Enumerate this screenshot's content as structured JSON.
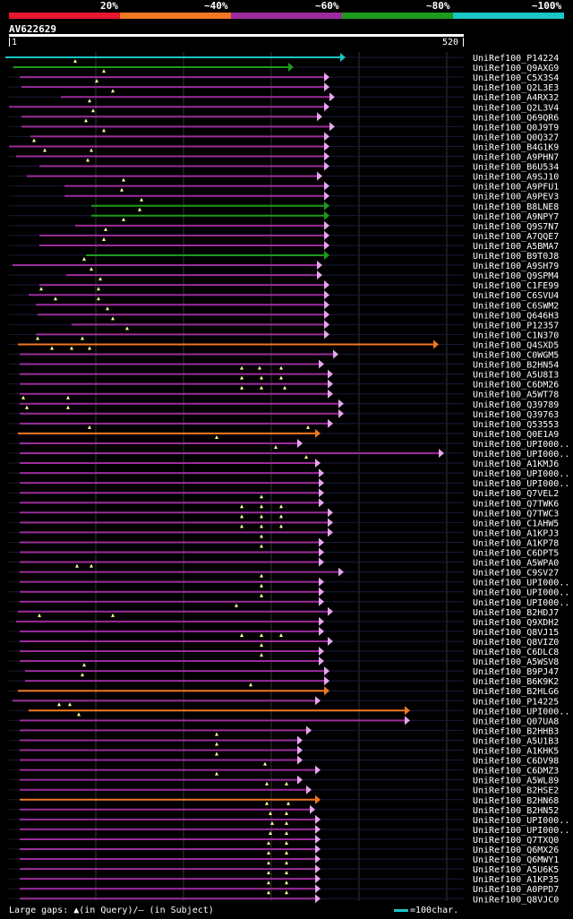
{
  "legend": [
    {
      "label": "20%",
      "color": "#e8162f"
    },
    {
      "label": "~40%",
      "color": "#f07820"
    },
    {
      "label": "~60%",
      "color": "#9c2c9c"
    },
    {
      "label": "~80%",
      "color": "#1d9a1d"
    },
    {
      "label": "~100%",
      "color": "#19c5c5"
    }
  ],
  "query": {
    "name": "AV622629",
    "start": "1",
    "end": "520"
  },
  "footer": {
    "gaps_text": "Large gaps: ▲(in Query)/– (in Subject)",
    "scale_text": "=100char."
  },
  "hits": [
    {
      "name": "UniRef100_P14224",
      "s": 6,
      "e": 380,
      "c": "cyan"
    },
    {
      "name": "UniRef100_Q9AXG9",
      "s": 15,
      "e": 322,
      "c": "green",
      "m": [
        84
      ]
    },
    {
      "name": "UniRef100_C5X3S4",
      "s": 22,
      "e": 362,
      "c": "purple",
      "m": [
        116
      ]
    },
    {
      "name": "UniRef100_Q2L3E3",
      "s": 24,
      "e": 362,
      "c": "purple",
      "m": [
        108
      ]
    },
    {
      "name": "UniRef100_A4RX32",
      "s": 68,
      "e": 368,
      "c": "purple",
      "m": [
        126
      ]
    },
    {
      "name": "UniRef100_Q2L3V4",
      "s": 10,
      "e": 362,
      "c": "purple",
      "m": [
        100
      ]
    },
    {
      "name": "UniRef100_Q69QR6",
      "s": 24,
      "e": 354,
      "c": "purple",
      "m": [
        104
      ]
    },
    {
      "name": "UniRef100_Q0J9T9",
      "s": 24,
      "e": 368,
      "c": "purple",
      "m": [
        96
      ]
    },
    {
      "name": "UniRef100_Q0Q327",
      "s": 34,
      "e": 362,
      "c": "purple",
      "m": [
        116
      ]
    },
    {
      "name": "UniRef100_B4G1K9",
      "s": 10,
      "e": 362,
      "c": "purple",
      "m": [
        38
      ]
    },
    {
      "name": "UniRef100_A9PHN7",
      "s": 18,
      "e": 362,
      "c": "purple",
      "m": [
        50,
        102
      ]
    },
    {
      "name": "UniRef100_B6U534",
      "s": 44,
      "e": 362,
      "c": "purple",
      "m": [
        98
      ]
    },
    {
      "name": "UniRef100_A9SJ10",
      "s": 30,
      "e": 354,
      "c": "purple"
    },
    {
      "name": "UniRef100_A9PFU1",
      "s": 72,
      "e": 362,
      "c": "purple",
      "m": [
        138
      ]
    },
    {
      "name": "UniRef100_A9PEV3",
      "s": 72,
      "e": 362,
      "c": "purple",
      "m": [
        136
      ]
    },
    {
      "name": "UniRef100_B8LNE8",
      "s": 102,
      "e": 362,
      "c": "green",
      "m": [
        158
      ]
    },
    {
      "name": "UniRef100_A9NPY7",
      "s": 102,
      "e": 362,
      "c": "green",
      "m": [
        156
      ]
    },
    {
      "name": "UniRef100_Q9S7N7",
      "s": 84,
      "e": 362,
      "c": "purple",
      "m": [
        138
      ]
    },
    {
      "name": "UniRef100_A7QQE7",
      "s": 44,
      "e": 362,
      "c": "purple",
      "m": [
        118
      ]
    },
    {
      "name": "UniRef100_A5BMA7",
      "s": 44,
      "e": 362,
      "c": "purple",
      "m": [
        116
      ]
    },
    {
      "name": "UniRef100_B9T0J8",
      "s": 96,
      "e": 362,
      "c": "green"
    },
    {
      "name": "UniRef100_A9SH79",
      "s": 14,
      "e": 354,
      "c": "purple",
      "m": [
        94
      ]
    },
    {
      "name": "UniRef100_Q9SPM4",
      "s": 74,
      "e": 354,
      "c": "purple",
      "m": [
        102
      ]
    },
    {
      "name": "UniRef100_C1FE99",
      "s": 44,
      "e": 362,
      "c": "purple",
      "m": [
        112
      ]
    },
    {
      "name": "UniRef100_C6SVU4",
      "s": 32,
      "e": 362,
      "c": "purple",
      "m": [
        46,
        110
      ]
    },
    {
      "name": "UniRef100_C6SWM2",
      "s": 40,
      "e": 362,
      "c": "purple",
      "m": [
        62,
        110
      ]
    },
    {
      "name": "UniRef100_Q646H3",
      "s": 42,
      "e": 362,
      "c": "purple",
      "m": [
        120
      ]
    },
    {
      "name": "UniRef100_P12357",
      "s": 80,
      "e": 362,
      "c": "purple",
      "m": [
        126
      ]
    },
    {
      "name": "UniRef100_C1N370",
      "s": 40,
      "e": 362,
      "c": "purple",
      "m": [
        142
      ]
    },
    {
      "name": "UniRef100_Q4SXD5",
      "s": 20,
      "e": 484,
      "c": "orange",
      "m": [
        42,
        92
      ]
    },
    {
      "name": "UniRef100_C0WGM5",
      "s": 22,
      "e": 372,
      "c": "purple",
      "m": [
        58,
        80,
        100
      ]
    },
    {
      "name": "UniRef100_B2HN54",
      "s": 22,
      "e": 356,
      "c": "purple"
    },
    {
      "name": "UniRef100_A5U8I3",
      "s": 22,
      "e": 366,
      "c": "purple",
      "m": [
        270,
        290,
        314
      ]
    },
    {
      "name": "UniRef100_C6DM26",
      "s": 22,
      "e": 366,
      "c": "purple",
      "m": [
        270,
        292,
        314
      ]
    },
    {
      "name": "UniRef100_A5WT78",
      "s": 22,
      "e": 366,
      "c": "purple",
      "m": [
        270,
        292,
        318
      ]
    },
    {
      "name": "UniRef100_Q39789",
      "s": 22,
      "e": 378,
      "c": "purple",
      "m": [
        26,
        76
      ]
    },
    {
      "name": "UniRef100_Q39763",
      "s": 22,
      "e": 378,
      "c": "purple",
      "m": [
        30,
        76
      ]
    },
    {
      "name": "UniRef100_Q53553",
      "s": 22,
      "e": 366,
      "c": "purple"
    },
    {
      "name": "UniRef100_Q0E1A9",
      "s": 20,
      "e": 352,
      "c": "orange",
      "m": [
        100,
        344
      ]
    },
    {
      "name": "UniRef100_UPI000..",
      "s": 22,
      "e": 332,
      "c": "purple",
      "m": [
        242
      ]
    },
    {
      "name": "UniRef100_UPI000..",
      "s": 22,
      "e": 490,
      "c": "purple",
      "m": [
        308
      ]
    },
    {
      "name": "UniRef100_A1KMJ6",
      "s": 22,
      "e": 352,
      "c": "purple",
      "m": [
        342
      ]
    },
    {
      "name": "UniRef100_UPI000..",
      "s": 22,
      "e": 356,
      "c": "purple"
    },
    {
      "name": "UniRef100_UPI000..",
      "s": 22,
      "e": 356,
      "c": "purple"
    },
    {
      "name": "UniRef100_Q7VEL2",
      "s": 22,
      "e": 356,
      "c": "purple"
    },
    {
      "name": "UniRef100_Q7TWK6",
      "s": 22,
      "e": 356,
      "c": "purple",
      "m": [
        292
      ]
    },
    {
      "name": "UniRef100_Q7TWC3",
      "s": 22,
      "e": 366,
      "c": "purple",
      "m": [
        270,
        292,
        314
      ]
    },
    {
      "name": "UniRef100_C1AHW5",
      "s": 22,
      "e": 366,
      "c": "purple",
      "m": [
        270,
        292,
        314
      ]
    },
    {
      "name": "UniRef100_A1KPJ3",
      "s": 22,
      "e": 366,
      "c": "purple",
      "m": [
        270,
        292,
        314
      ]
    },
    {
      "name": "UniRef100_A1KP78",
      "s": 22,
      "e": 356,
      "c": "purple",
      "m": [
        292
      ]
    },
    {
      "name": "UniRef100_C6DPT5",
      "s": 22,
      "e": 356,
      "c": "purple",
      "m": [
        292
      ]
    },
    {
      "name": "UniRef100_A5WPA0",
      "s": 22,
      "e": 356,
      "c": "purple"
    },
    {
      "name": "UniRef100_C9SV27",
      "s": 22,
      "e": 378,
      "c": "purple",
      "m": [
        86,
        102
      ]
    },
    {
      "name": "UniRef100_UPI000..",
      "s": 22,
      "e": 356,
      "c": "purple",
      "m": [
        292
      ]
    },
    {
      "name": "UniRef100_UPI000..",
      "s": 22,
      "e": 356,
      "c": "purple",
      "m": [
        292
      ]
    },
    {
      "name": "UniRef100_UPI000..",
      "s": 22,
      "e": 356,
      "c": "purple",
      "m": [
        292
      ]
    },
    {
      "name": "UniRef100_B2HDJ7",
      "s": 20,
      "e": 366,
      "c": "purple",
      "m": [
        264
      ]
    },
    {
      "name": "UniRef100_Q9XDH2",
      "s": 18,
      "e": 356,
      "c": "purple",
      "m": [
        44,
        126
      ]
    },
    {
      "name": "UniRef100_Q8VJ15",
      "s": 22,
      "e": 356,
      "c": "purple"
    },
    {
      "name": "UniRef100_Q8VIZ0",
      "s": 22,
      "e": 366,
      "c": "purple",
      "m": [
        270,
        292,
        314
      ]
    },
    {
      "name": "UniRef100_C6DLC8",
      "s": 22,
      "e": 356,
      "c": "purple",
      "m": [
        292
      ]
    },
    {
      "name": "UniRef100_A5WSV8",
      "s": 22,
      "e": 356,
      "c": "purple",
      "m": [
        292
      ]
    },
    {
      "name": "UniRef100_B9PJ47",
      "s": 28,
      "e": 362,
      "c": "purple",
      "m": [
        94
      ]
    },
    {
      "name": "UniRef100_B6K9K2",
      "s": 28,
      "e": 362,
      "c": "purple",
      "m": [
        92
      ]
    },
    {
      "name": "UniRef100_B2HLG6",
      "s": 20,
      "e": 362,
      "c": "orange",
      "m": [
        280
      ]
    },
    {
      "name": "UniRef100_P14225",
      "s": 14,
      "e": 352,
      "c": "purple"
    },
    {
      "name": "UniRef100_UPI000..",
      "s": 32,
      "e": 452,
      "c": "orange",
      "m": [
        66,
        78
      ]
    },
    {
      "name": "UniRef100_Q07UA8",
      "s": 22,
      "e": 452,
      "c": "purple",
      "m": [
        88
      ]
    },
    {
      "name": "UniRef100_B2HHB3",
      "s": 22,
      "e": 342,
      "c": "purple"
    },
    {
      "name": "UniRef100_A5U1B3",
      "s": 22,
      "e": 332,
      "c": "purple",
      "m": [
        242
      ]
    },
    {
      "name": "UniRef100_A1KHK5",
      "s": 22,
      "e": 332,
      "c": "purple",
      "m": [
        242
      ]
    },
    {
      "name": "UniRef100_C6DV98",
      "s": 22,
      "e": 332,
      "c": "purple",
      "m": [
        242
      ]
    },
    {
      "name": "UniRef100_C6DMZ3",
      "s": 22,
      "e": 352,
      "c": "purple",
      "m": [
        296
      ]
    },
    {
      "name": "UniRef100_A5WL89",
      "s": 22,
      "e": 332,
      "c": "purple",
      "m": [
        242
      ]
    },
    {
      "name": "UniRef100_B2HSE2",
      "s": 22,
      "e": 342,
      "c": "purple",
      "m": [
        298,
        320
      ]
    },
    {
      "name": "UniRef100_B2HN68",
      "s": 22,
      "e": 352,
      "c": "orange"
    },
    {
      "name": "UniRef100_B2HN52",
      "s": 22,
      "e": 346,
      "c": "purple",
      "m": [
        298,
        322
      ]
    },
    {
      "name": "UniRef100_UPI000..",
      "s": 22,
      "e": 352,
      "c": "purple",
      "m": [
        302,
        320
      ]
    },
    {
      "name": "UniRef100_UPI000..",
      "s": 22,
      "e": 352,
      "c": "purple",
      "m": [
        304,
        320
      ]
    },
    {
      "name": "UniRef100_Q7TXQ0",
      "s": 22,
      "e": 352,
      "c": "purple",
      "m": [
        302,
        320
      ]
    },
    {
      "name": "UniRef100_Q6MX26",
      "s": 22,
      "e": 352,
      "c": "purple",
      "m": [
        300,
        320
      ]
    },
    {
      "name": "UniRef100_Q6MWY1",
      "s": 22,
      "e": 352,
      "c": "purple",
      "m": [
        300,
        320
      ]
    },
    {
      "name": "UniRef100_A5U6K5",
      "s": 22,
      "e": 352,
      "c": "purple",
      "m": [
        300,
        320
      ]
    },
    {
      "name": "UniRef100_A1KP35",
      "s": 22,
      "e": 352,
      "c": "purple",
      "m": [
        300,
        320
      ]
    },
    {
      "name": "UniRef100_A0PPD7",
      "s": 22,
      "e": 352,
      "c": "purple",
      "m": [
        300,
        320
      ]
    },
    {
      "name": "UniRef100_Q8VJC0",
      "s": 22,
      "e": 352,
      "c": "purple",
      "m": [
        300,
        320
      ]
    }
  ]
}
